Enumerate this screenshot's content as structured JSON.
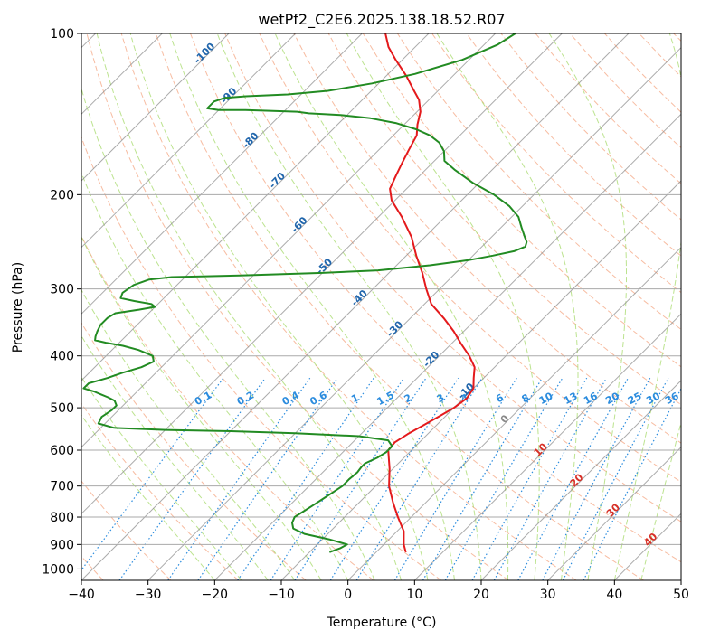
{
  "chart_data": {
    "type": "skew-t",
    "title": "wetPf2_C2E6.2025.138.18.52.R07",
    "xlabel": "Temperature (°C)",
    "ylabel": "Pressure (hPa)",
    "xlim": [
      -40,
      50
    ],
    "ylim": [
      1050,
      100
    ],
    "x_ticks": [
      "−40",
      "−30",
      "−20",
      "−10",
      "0",
      "10",
      "20",
      "30",
      "40",
      "50"
    ],
    "y_ticks": [
      {
        "p": 100,
        "label": "100"
      },
      {
        "p": 200,
        "label": "200"
      },
      {
        "p": 300,
        "label": "300"
      },
      {
        "p": 400,
        "label": "400"
      },
      {
        "p": 500,
        "label": "500"
      },
      {
        "p": 600,
        "label": "600"
      },
      {
        "p": 700,
        "label": "700"
      },
      {
        "p": 800,
        "label": "800"
      },
      {
        "p": 900,
        "label": "900"
      },
      {
        "p": 1000,
        "label": "1000"
      }
    ],
    "grid": true,
    "colors": {
      "temperature": "#e41a1c",
      "dewpoint": "#228b22",
      "isotherm": "#888888",
      "dry_adiabat": "#f4a582",
      "moist_adiabat": "#a6d96a",
      "mixing_ratio": "#2b8cde",
      "isotherm_label_negative": "#2166ac",
      "isotherm_label_positive": "#d73027",
      "isotherm_label_zero": "#888888"
    },
    "series": [
      {
        "key": "temperature",
        "points": [
          [
            4.5,
            930
          ],
          [
            4.2,
            925
          ],
          [
            3.0,
            900
          ],
          [
            1.0,
            850
          ],
          [
            -2.0,
            800
          ],
          [
            -5.0,
            750
          ],
          [
            -8.0,
            700
          ],
          [
            -10.5,
            650
          ],
          [
            -13.5,
            600
          ],
          [
            -13.7,
            580
          ],
          [
            -13.0,
            560
          ],
          [
            -12.0,
            540
          ],
          [
            -11.0,
            520
          ],
          [
            -10.0,
            500
          ],
          [
            -9.5,
            480
          ],
          [
            -10.0,
            460
          ],
          [
            -11.5,
            440
          ],
          [
            -13.0,
            420
          ],
          [
            -15.5,
            400
          ],
          [
            -18.5,
            380
          ],
          [
            -21.5,
            360
          ],
          [
            -25.0,
            340
          ],
          [
            -29.0,
            320
          ],
          [
            -32.0,
            300
          ],
          [
            -35.0,
            280
          ],
          [
            -38.5,
            260
          ],
          [
            -42.0,
            240
          ],
          [
            -46.5,
            220
          ],
          [
            -50.5,
            205
          ],
          [
            -52.5,
            195
          ],
          [
            -53.5,
            185
          ],
          [
            -54.5,
            175
          ],
          [
            -55.5,
            165
          ],
          [
            -56.5,
            155
          ],
          [
            -58.0,
            148
          ],
          [
            -59.5,
            140
          ],
          [
            -61.5,
            133
          ],
          [
            -64.0,
            127
          ],
          [
            -67.0,
            120
          ],
          [
            -71.0,
            112
          ],
          [
            -74.0,
            106
          ],
          [
            -76.5,
            100
          ]
        ]
      },
      {
        "key": "dewpoint",
        "points": [
          [
            -7.0,
            930
          ],
          [
            -6.0,
            915
          ],
          [
            -5.5,
            900
          ],
          [
            -9.0,
            880
          ],
          [
            -13.5,
            860
          ],
          [
            -16.0,
            840
          ],
          [
            -17.0,
            820
          ],
          [
            -17.5,
            800
          ],
          [
            -17.0,
            780
          ],
          [
            -16.5,
            760
          ],
          [
            -16.0,
            740
          ],
          [
            -15.5,
            720
          ],
          [
            -15.0,
            700
          ],
          [
            -15.0,
            680
          ],
          [
            -14.8,
            660
          ],
          [
            -15.0,
            645
          ],
          [
            -15.0,
            635
          ],
          [
            -14.0,
            620
          ],
          [
            -13.5,
            605
          ],
          [
            -13.5,
            590
          ],
          [
            -15.0,
            575
          ],
          [
            -20.0,
            565
          ],
          [
            -30.0,
            558
          ],
          [
            -40.0,
            553
          ],
          [
            -50.0,
            550
          ],
          [
            -58.0,
            545
          ],
          [
            -61.0,
            535
          ],
          [
            -61.5,
            520
          ],
          [
            -61.0,
            505
          ],
          [
            -61.0,
            495
          ],
          [
            -62.0,
            485
          ],
          [
            -63.5,
            478
          ],
          [
            -65.0,
            472
          ],
          [
            -66.5,
            466
          ],
          [
            -68.5,
            460
          ],
          [
            -68.5,
            450
          ],
          [
            -66.5,
            440
          ],
          [
            -65.0,
            430
          ],
          [
            -63.0,
            420
          ],
          [
            -62.0,
            410
          ],
          [
            -63.0,
            400
          ],
          [
            -66.0,
            390
          ],
          [
            -69.0,
            383
          ],
          [
            -72.0,
            378
          ],
          [
            -74.0,
            374
          ],
          [
            -74.5,
            368
          ],
          [
            -75.0,
            360
          ],
          [
            -75.5,
            350
          ],
          [
            -75.5,
            340
          ],
          [
            -75.0,
            333
          ],
          [
            -72.0,
            328
          ],
          [
            -70.0,
            324
          ],
          [
            -71.0,
            320
          ],
          [
            -74.0,
            316
          ],
          [
            -76.5,
            312
          ],
          [
            -77.0,
            305
          ],
          [
            -76.5,
            295
          ],
          [
            -75.0,
            288
          ],
          [
            -72.0,
            285
          ],
          [
            -62.0,
            283
          ],
          [
            -50.0,
            280
          ],
          [
            -42.0,
            277
          ],
          [
            -35.0,
            271
          ],
          [
            -30.0,
            265
          ],
          [
            -27.0,
            260
          ],
          [
            -24.5,
            255
          ],
          [
            -23.5,
            250
          ],
          [
            -24.0,
            245
          ],
          [
            -25.0,
            240
          ],
          [
            -27.0,
            230
          ],
          [
            -29.0,
            220
          ],
          [
            -32.0,
            210
          ],
          [
            -36.0,
            200
          ],
          [
            -41.0,
            190
          ],
          [
            -45.5,
            180
          ],
          [
            -48.5,
            173
          ],
          [
            -50.0,
            166
          ],
          [
            -52.0,
            160
          ],
          [
            -54.5,
            155
          ],
          [
            -57.5,
            151
          ],
          [
            -61.5,
            147
          ],
          [
            -66.0,
            144
          ],
          [
            -71.0,
            142
          ],
          [
            -76.0,
            141
          ],
          [
            -78.0,
            140
          ],
          [
            -86.0,
            139
          ],
          [
            -90.0,
            139
          ],
          [
            -92.0,
            138
          ],
          [
            -92.0,
            134
          ],
          [
            -91.0,
            132
          ],
          [
            -88.0,
            131
          ],
          [
            -82.0,
            130
          ],
          [
            -76.5,
            128
          ],
          [
            -71.0,
            124
          ],
          [
            -66.0,
            119
          ],
          [
            -61.0,
            112
          ],
          [
            -58.0,
            105
          ],
          [
            -57.0,
            100
          ]
        ]
      }
    ],
    "isotherm_labels": [
      {
        "t": -100,
        "p": 110,
        "text": "-100"
      },
      {
        "t": -90,
        "p": 132,
        "text": "-90"
      },
      {
        "t": -80,
        "p": 160,
        "text": "-80"
      },
      {
        "t": -70,
        "p": 190,
        "text": "-70"
      },
      {
        "t": -60,
        "p": 230,
        "text": "-60"
      },
      {
        "t": -50,
        "p": 275,
        "text": "-50"
      },
      {
        "t": -40,
        "p": 315,
        "text": "-40"
      },
      {
        "t": -30,
        "p": 360,
        "text": "-30"
      },
      {
        "t": -20,
        "p": 410,
        "text": "-20"
      },
      {
        "t": -10,
        "p": 470,
        "text": "-10"
      },
      {
        "t": 0,
        "p": 530,
        "text": "0"
      },
      {
        "t": 10,
        "p": 605,
        "text": "10"
      },
      {
        "t": 20,
        "p": 690,
        "text": "20"
      },
      {
        "t": 30,
        "p": 785,
        "text": "30"
      },
      {
        "t": 40,
        "p": 890,
        "text": "40"
      }
    ],
    "mixing_ratio_labels": [
      "0.1",
      "0.2",
      "0.4",
      "0.6",
      "1",
      "1.5",
      "2",
      "3",
      "4",
      "6",
      "8",
      "10",
      "13",
      "16",
      "20",
      "25",
      "30",
      "36"
    ],
    "mixing_ratio_values": [
      0.1,
      0.2,
      0.4,
      0.6,
      1,
      1.5,
      2,
      3,
      4,
      6,
      8,
      10,
      13,
      16,
      20,
      25,
      30,
      36
    ],
    "mixing_ratio_label_pressure": 490
  }
}
